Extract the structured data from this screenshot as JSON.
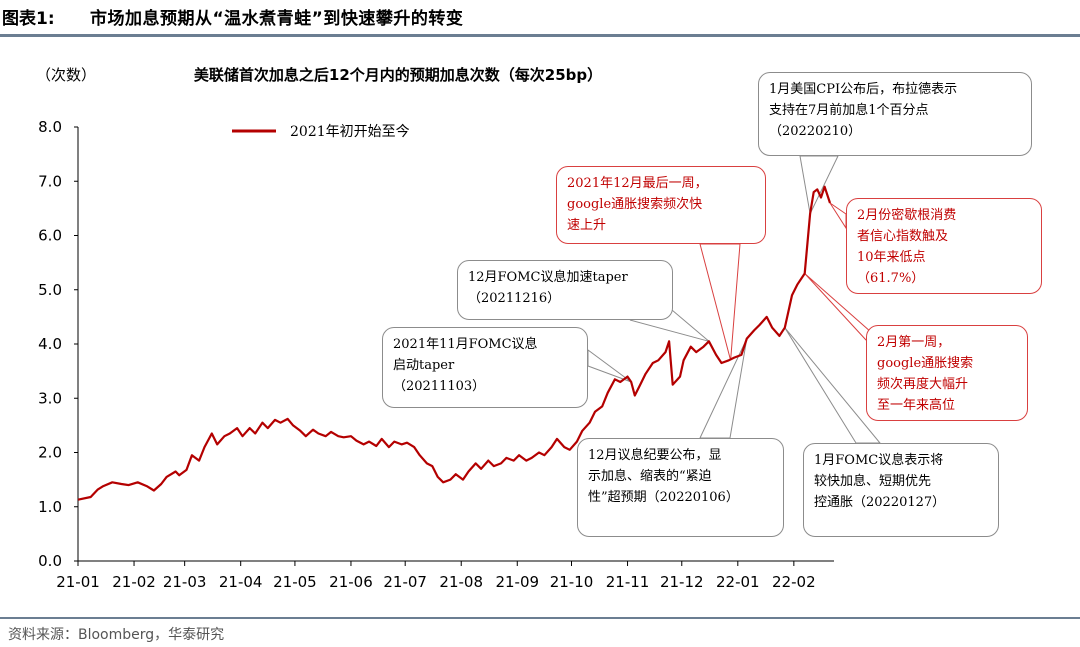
{
  "figure": {
    "label": "图表1:",
    "title": "市场加息预期从“温水煮青蛙”到快速攀升的转变",
    "source": "资料来源：Bloomberg，华泰研究"
  },
  "chart_data": {
    "type": "line",
    "title": "美联储首次加息之后12个月内的预期加息次数（每次25bp）",
    "ylabel": "（次数）",
    "xlabel": "",
    "ylim": [
      0,
      8
    ],
    "y_ticks": [
      "0.0",
      "1.0",
      "2.0",
      "3.0",
      "4.0",
      "5.0",
      "6.0",
      "7.0",
      "8.0"
    ],
    "x_ticks": [
      "21-01",
      "21-02",
      "21-03",
      "21-04",
      "21-05",
      "21-06",
      "21-07",
      "21-08",
      "21-09",
      "21-10",
      "21-11",
      "21-12",
      "22-01",
      "22-02"
    ],
    "legend_position": "top-left",
    "series": [
      {
        "name": "2021年初开始至今",
        "color": "#b40000",
        "points": [
          [
            "2021-01-01",
            1.13
          ],
          [
            "2021-01-08",
            1.18
          ],
          [
            "2021-01-12",
            1.32
          ],
          [
            "2021-01-15",
            1.38
          ],
          [
            "2021-01-20",
            1.45
          ],
          [
            "2021-01-25",
            1.42
          ],
          [
            "2021-01-29",
            1.4
          ],
          [
            "2021-02-03",
            1.45
          ],
          [
            "2021-02-08",
            1.38
          ],
          [
            "2021-02-12",
            1.3
          ],
          [
            "2021-02-16",
            1.42
          ],
          [
            "2021-02-19",
            1.55
          ],
          [
            "2021-02-24",
            1.65
          ],
          [
            "2021-02-26",
            1.58
          ],
          [
            "2021-03-02",
            1.68
          ],
          [
            "2021-03-05",
            1.95
          ],
          [
            "2021-03-09",
            1.85
          ],
          [
            "2021-03-12",
            2.1
          ],
          [
            "2021-03-16",
            2.35
          ],
          [
            "2021-03-19",
            2.15
          ],
          [
            "2021-03-23",
            2.3
          ],
          [
            "2021-03-26",
            2.35
          ],
          [
            "2021-03-30",
            2.45
          ],
          [
            "2021-04-02",
            2.3
          ],
          [
            "2021-04-06",
            2.45
          ],
          [
            "2021-04-09",
            2.35
          ],
          [
            "2021-04-13",
            2.55
          ],
          [
            "2021-04-16",
            2.45
          ],
          [
            "2021-04-20",
            2.6
          ],
          [
            "2021-04-23",
            2.55
          ],
          [
            "2021-04-27",
            2.62
          ],
          [
            "2021-04-30",
            2.5
          ],
          [
            "2021-05-04",
            2.4
          ],
          [
            "2021-05-07",
            2.3
          ],
          [
            "2021-05-11",
            2.42
          ],
          [
            "2021-05-14",
            2.35
          ],
          [
            "2021-05-18",
            2.3
          ],
          [
            "2021-05-21",
            2.38
          ],
          [
            "2021-05-25",
            2.3
          ],
          [
            "2021-05-28",
            2.28
          ],
          [
            "2021-06-01",
            2.3
          ],
          [
            "2021-06-04",
            2.22
          ],
          [
            "2021-06-08",
            2.15
          ],
          [
            "2021-06-11",
            2.2
          ],
          [
            "2021-06-15",
            2.12
          ],
          [
            "2021-06-18",
            2.25
          ],
          [
            "2021-06-22",
            2.1
          ],
          [
            "2021-06-25",
            2.2
          ],
          [
            "2021-06-29",
            2.15
          ],
          [
            "2021-07-02",
            2.18
          ],
          [
            "2021-07-06",
            2.1
          ],
          [
            "2021-07-09",
            1.95
          ],
          [
            "2021-07-13",
            1.8
          ],
          [
            "2021-07-16",
            1.75
          ],
          [
            "2021-07-19",
            1.55
          ],
          [
            "2021-07-22",
            1.45
          ],
          [
            "2021-07-26",
            1.5
          ],
          [
            "2021-07-29",
            1.6
          ],
          [
            "2021-08-02",
            1.5
          ],
          [
            "2021-08-05",
            1.65
          ],
          [
            "2021-08-09",
            1.8
          ],
          [
            "2021-08-12",
            1.7
          ],
          [
            "2021-08-16",
            1.85
          ],
          [
            "2021-08-19",
            1.75
          ],
          [
            "2021-08-23",
            1.8
          ],
          [
            "2021-08-26",
            1.9
          ],
          [
            "2021-08-30",
            1.85
          ],
          [
            "2021-09-02",
            1.95
          ],
          [
            "2021-09-06",
            1.85
          ],
          [
            "2021-09-09",
            1.9
          ],
          [
            "2021-09-13",
            2.0
          ],
          [
            "2021-09-16",
            1.95
          ],
          [
            "2021-09-20",
            2.1
          ],
          [
            "2021-09-23",
            2.25
          ],
          [
            "2021-09-27",
            2.1
          ],
          [
            "2021-09-30",
            2.05
          ],
          [
            "2021-10-04",
            2.2
          ],
          [
            "2021-10-07",
            2.4
          ],
          [
            "2021-10-11",
            2.55
          ],
          [
            "2021-10-14",
            2.75
          ],
          [
            "2021-10-18",
            2.85
          ],
          [
            "2021-10-21",
            3.1
          ],
          [
            "2021-10-25",
            3.35
          ],
          [
            "2021-10-28",
            3.3
          ],
          [
            "2021-11-01",
            3.4
          ],
          [
            "2021-11-03",
            3.3
          ],
          [
            "2021-11-05",
            3.05
          ],
          [
            "2021-11-08",
            3.25
          ],
          [
            "2021-11-11",
            3.45
          ],
          [
            "2021-11-15",
            3.65
          ],
          [
            "2021-11-18",
            3.7
          ],
          [
            "2021-11-22",
            3.85
          ],
          [
            "2021-11-24",
            4.05
          ],
          [
            "2021-11-26",
            3.25
          ],
          [
            "2021-11-30",
            3.4
          ],
          [
            "2021-12-02",
            3.7
          ],
          [
            "2021-12-06",
            3.95
          ],
          [
            "2021-12-09",
            3.85
          ],
          [
            "2021-12-13",
            3.95
          ],
          [
            "2021-12-16",
            4.05
          ],
          [
            "2021-12-20",
            3.8
          ],
          [
            "2021-12-23",
            3.65
          ],
          [
            "2021-12-27",
            3.7
          ],
          [
            "2021-12-30",
            3.75
          ],
          [
            "2022-01-03",
            3.8
          ],
          [
            "2022-01-06",
            4.1
          ],
          [
            "2022-01-10",
            4.25
          ],
          [
            "2022-01-13",
            4.35
          ],
          [
            "2022-01-17",
            4.5
          ],
          [
            "2022-01-20",
            4.3
          ],
          [
            "2022-01-24",
            4.15
          ],
          [
            "2022-01-27",
            4.3
          ],
          [
            "2022-01-31",
            4.9
          ],
          [
            "2022-02-03",
            5.1
          ],
          [
            "2022-02-07",
            5.3
          ],
          [
            "2022-02-10",
            6.4
          ],
          [
            "2022-02-12",
            6.8
          ],
          [
            "2022-02-14",
            6.85
          ],
          [
            "2022-02-16",
            6.7
          ],
          [
            "2022-02-18",
            6.9
          ],
          [
            "2022-02-21",
            6.6
          ]
        ]
      }
    ],
    "annotations": [
      {
        "id": "cpi",
        "text": "1月美国CPI公布后，布拉德表示\n支持在7月前加息1个百分点\n（20220210）",
        "style": "gray"
      },
      {
        "id": "google-dec",
        "text": "2021年12月最后一周，\ngoogle通胀搜索频次快\n速上升",
        "style": "red"
      },
      {
        "id": "sentiment",
        "text": "2月份密歇根消费\n者信心指数触及\n10年来低点\n（61.7%）",
        "style": "red"
      },
      {
        "id": "fomc-dec",
        "text": "12月FOMC议息加速taper\n（20211216）",
        "style": "gray"
      },
      {
        "id": "fomc-nov",
        "text": "2021年11月FOMC议息\n启动taper\n（20211103）",
        "style": "gray"
      },
      {
        "id": "google-feb",
        "text": "2月第一周，\ngoogle通胀搜索\n频次再度大幅升\n至一年来高位",
        "style": "red"
      },
      {
        "id": "minutes",
        "text": "12月议息纪要公布，显\n示加息、缩表的“紧迫\n性”超预期（20220106）",
        "style": "gray"
      },
      {
        "id": "fomc-jan",
        "text": "1月FOMC议息表示将\n较快加息、短期优先\n控通胀（20220127）",
        "style": "gray"
      }
    ]
  }
}
